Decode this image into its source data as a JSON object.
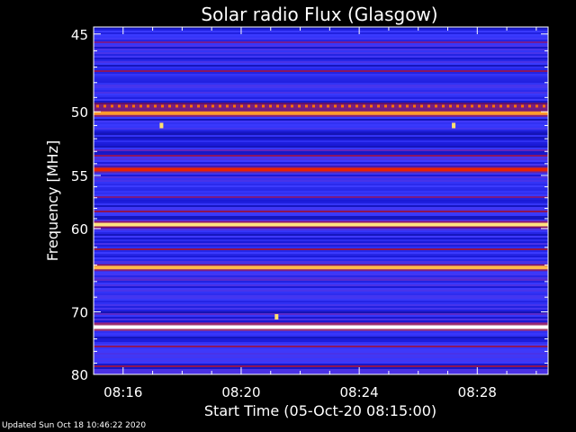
{
  "chart_data": {
    "type": "heatmap",
    "title": "Solar radio Flux (Glasgow)",
    "xlabel": "Start Time (05-Oct-20 08:15:00)",
    "ylabel": "Frequency [MHz]",
    "x_unit": "minutes after 08:15:00",
    "xlim": [
      0,
      15.4
    ],
    "ylim": [
      44.6,
      80
    ],
    "y_scale": "reciprocal",
    "y_ticks": [
      45,
      50,
      55,
      60,
      70,
      80
    ],
    "y_tick_labels": [
      "45",
      "50",
      "55",
      "60",
      "70",
      "80"
    ],
    "x_ticks": [
      1,
      5,
      9,
      13
    ],
    "x_tick_labels": [
      "08:16",
      "08:20",
      "08:24",
      "08:28"
    ],
    "colormap": [
      "#000020",
      "#0a0a7a",
      "#1a1ad8",
      "#3b3bff",
      "#6a1fb0",
      "#a0102a",
      "#e00000",
      "#ff7000",
      "#ffe070",
      "#ffffff"
    ],
    "emission_bands": [
      {
        "freq_mhz": 49.6,
        "intensity": 0.78,
        "pattern": "dotted"
      },
      {
        "freq_mhz": 50.1,
        "intensity": 0.82
      },
      {
        "freq_mhz": 54.5,
        "intensity": 0.7
      },
      {
        "freq_mhz": 59.6,
        "intensity": 0.9
      },
      {
        "freq_mhz": 64.3,
        "intensity": 0.85
      },
      {
        "freq_mhz": 72.2,
        "intensity": 1.0
      }
    ],
    "bursts": [
      {
        "minute": 2.3,
        "freq_mhz": 51.0
      },
      {
        "minute": 6.2,
        "freq_mhz": 70.7
      },
      {
        "minute": 12.2,
        "freq_mhz": 51.0
      }
    ]
  },
  "footer": {
    "updated": "Updated Sun Oct 18 10:46:22 2020"
  }
}
